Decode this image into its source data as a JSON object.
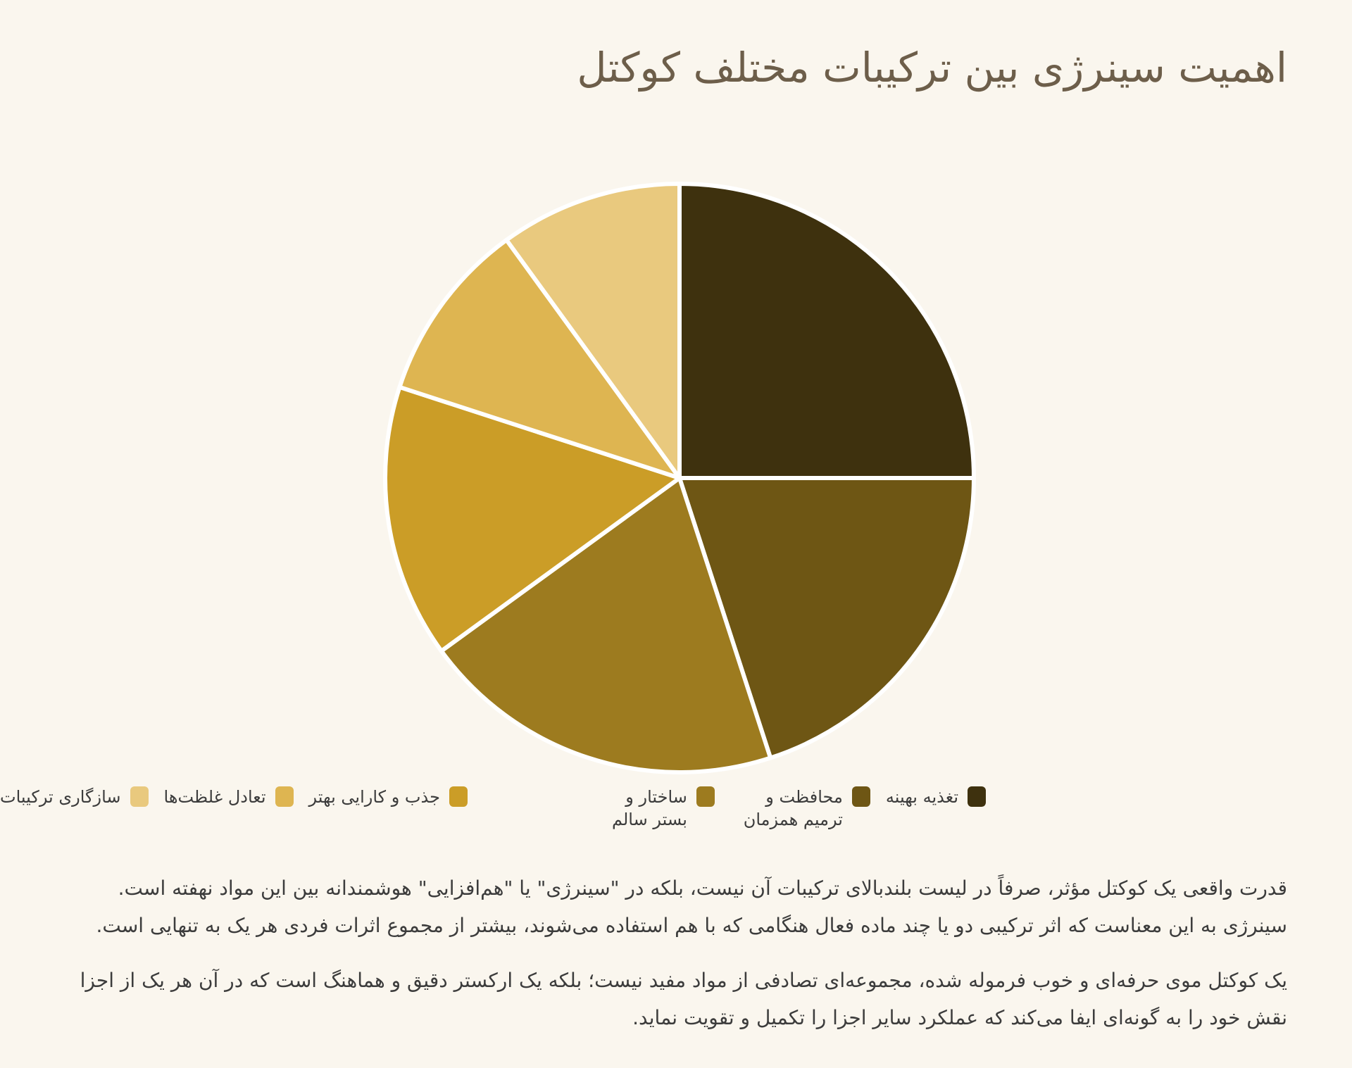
{
  "page": {
    "title": "اهمیت سینرژی بین ترکیبات مختلف کوکتل",
    "background_color": "#faf6ee",
    "title_color": "#6d5e4a",
    "text_color": "#3c3c3c"
  },
  "chart_data": {
    "type": "pie",
    "title": "اهمیت سینرژی بین ترکیبات مختلف کوکتل",
    "categories": [
      "تغذیه بهینه",
      "محافظت و ترمیم همزمان",
      "ساختار و بستر سالم",
      "جذب و کارایی بهتر",
      "تعادل غلظت‌ها",
      "سازگاری ترکیبات"
    ],
    "values": [
      25,
      20,
      20,
      15,
      10,
      10
    ],
    "unit": "percent",
    "colors": [
      "#3e310e",
      "#6e5614",
      "#9d7b1f",
      "#cb9d27",
      "#deb551",
      "#e9c97e"
    ],
    "start_angle": "12-oclock",
    "direction": "clockwise",
    "legend_position": "bottom",
    "slice_separator_color": "#ffffff"
  },
  "paragraphs": [
    "قدرت واقعی یک کوکتل مؤثر، صرفاً در لیست بلندبالای ترکیبات آن نیست، بلکه در \"سینرژی\" یا \"هم‌افزایی\" هوشمندانه بین این مواد نهفته است. سینرژی به این معناست که اثر ترکیبی دو یا چند ماده فعال هنگامی که با هم استفاده می‌شوند، بیشتر از مجموع اثرات فردی هر یک به تنهایی است.",
    "یک کوکتل موی حرفه‌ای و خوب فرموله شده، مجموعه‌ای تصادفی از مواد مفید نیست؛ بلکه یک ارکستر دقیق و هماهنگ است که در آن هر یک از اجزا نقش خود را به گونه‌ای ایفا می‌کند که عملکرد سایر اجزا را تکمیل و تقویت نماید."
  ]
}
